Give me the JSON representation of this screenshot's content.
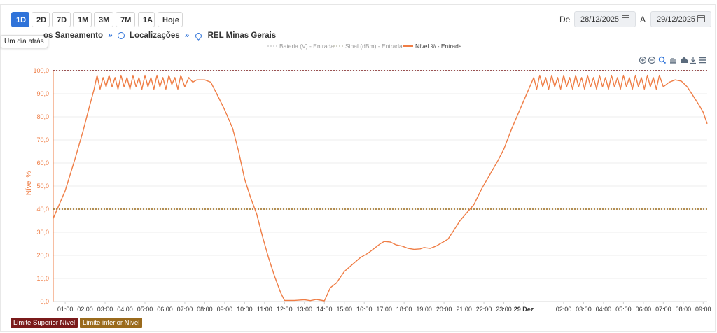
{
  "range_buttons": [
    {
      "label": "1D",
      "active": true
    },
    {
      "label": "2D",
      "active": false
    },
    {
      "label": "7D",
      "active": false
    },
    {
      "label": "1M",
      "active": false
    },
    {
      "label": "3M",
      "active": false
    },
    {
      "label": "7M",
      "active": false
    },
    {
      "label": "1A",
      "active": false
    },
    {
      "label": "Hoje",
      "active": false
    }
  ],
  "tooltip": "Um dia atrás",
  "date_range": {
    "from_label": "De",
    "from": "28/12/2025",
    "to_label": "A",
    "to": "29/12/2025"
  },
  "breadcrumb": {
    "item1": "os Saneamento",
    "item2": "Localizações",
    "item3": "REL Minas Gerais"
  },
  "legend": [
    {
      "name": "Bateria (V) - Entrada",
      "color": "#c8c8c8",
      "dashed": true
    },
    {
      "name": "Sinal (dBm) - Entrada",
      "color": "#b9b9a8",
      "dashed": true
    },
    {
      "name": "Nível % - Entrada",
      "color": "#ef7d45",
      "dashed": false
    }
  ],
  "limits": {
    "upper_label": "Limite Superior Nível",
    "upper_value": 100,
    "upper_color": "#7a1a1a",
    "lower_label": "Limite inferior Nível",
    "lower_value": 40,
    "lower_color": "#9a6a1c"
  },
  "toolbar_icons": [
    "zoom-in-icon",
    "zoom-out-icon",
    "zoom-select-icon",
    "pan-icon",
    "home-icon",
    "download-icon",
    "menu-icon"
  ],
  "chart_data": {
    "type": "line",
    "ylabel": "Nível %",
    "ylim": [
      0,
      100
    ],
    "yticks": [
      "0,0",
      "10,0",
      "20,0",
      "30,0",
      "40,0",
      "50,0",
      "60,0",
      "70,0",
      "80,0",
      "90,0",
      "100,0"
    ],
    "xlim": [
      0.4,
      33.2
    ],
    "xticks": [
      {
        "x": 1,
        "label": "01:00"
      },
      {
        "x": 2,
        "label": "02:00"
      },
      {
        "x": 3,
        "label": "03:00"
      },
      {
        "x": 4,
        "label": "04:00"
      },
      {
        "x": 5,
        "label": "05:00"
      },
      {
        "x": 6,
        "label": "06:00"
      },
      {
        "x": 7,
        "label": "07:00"
      },
      {
        "x": 8,
        "label": "08:00"
      },
      {
        "x": 9,
        "label": "09:00"
      },
      {
        "x": 10,
        "label": "10:00"
      },
      {
        "x": 11,
        "label": "11:00"
      },
      {
        "x": 12,
        "label": "12:00"
      },
      {
        "x": 13,
        "label": "13:00"
      },
      {
        "x": 14,
        "label": "14:00"
      },
      {
        "x": 15,
        "label": "15:00"
      },
      {
        "x": 16,
        "label": "16:00"
      },
      {
        "x": 17,
        "label": "17:00"
      },
      {
        "x": 18,
        "label": "18:00"
      },
      {
        "x": 19,
        "label": "19:00"
      },
      {
        "x": 20,
        "label": "20:00"
      },
      {
        "x": 21,
        "label": "21:00"
      },
      {
        "x": 22,
        "label": "22:00"
      },
      {
        "x": 23,
        "label": "23:00"
      },
      {
        "x": 24,
        "label": "29 Dez",
        "bold": true
      },
      {
        "x": 26,
        "label": "02:00"
      },
      {
        "x": 27,
        "label": "03:00"
      },
      {
        "x": 28,
        "label": "04:00"
      },
      {
        "x": 29,
        "label": "05:00"
      },
      {
        "x": 30,
        "label": "06:00"
      },
      {
        "x": 31,
        "label": "07:00"
      },
      {
        "x": 32,
        "label": "08:00"
      },
      {
        "x": 33,
        "label": "09:00"
      }
    ],
    "series": [
      {
        "name": "Nível % - Entrada",
        "color": "#ef7d45",
        "points": [
          [
            0.4,
            36
          ],
          [
            1.0,
            48
          ],
          [
            1.5,
            62
          ],
          [
            1.9,
            74
          ],
          [
            2.2,
            84
          ],
          [
            2.45,
            92
          ],
          [
            2.6,
            98
          ],
          [
            2.75,
            92
          ],
          [
            2.9,
            97
          ],
          [
            3.05,
            93
          ],
          [
            3.2,
            98
          ],
          [
            3.35,
            93
          ],
          [
            3.5,
            97
          ],
          [
            3.65,
            92
          ],
          [
            3.8,
            98
          ],
          [
            3.95,
            93
          ],
          [
            4.1,
            97
          ],
          [
            4.25,
            92
          ],
          [
            4.4,
            98
          ],
          [
            4.55,
            93
          ],
          [
            4.7,
            97
          ],
          [
            4.85,
            92
          ],
          [
            5.0,
            98
          ],
          [
            5.15,
            93
          ],
          [
            5.3,
            97
          ],
          [
            5.45,
            92
          ],
          [
            5.6,
            98
          ],
          [
            5.75,
            93
          ],
          [
            5.9,
            97
          ],
          [
            6.05,
            92
          ],
          [
            6.2,
            98
          ],
          [
            6.35,
            94
          ],
          [
            6.5,
            97
          ],
          [
            6.65,
            92
          ],
          [
            6.8,
            98
          ],
          [
            7.0,
            93
          ],
          [
            7.2,
            97
          ],
          [
            7.4,
            95
          ],
          [
            7.6,
            96
          ],
          [
            8.0,
            96
          ],
          [
            8.3,
            95
          ],
          [
            8.6,
            90
          ],
          [
            9.0,
            83
          ],
          [
            9.4,
            75
          ],
          [
            9.7,
            65
          ],
          [
            10.0,
            53
          ],
          [
            10.3,
            45
          ],
          [
            10.6,
            38
          ],
          [
            10.9,
            28
          ],
          [
            11.2,
            19
          ],
          [
            11.5,
            11
          ],
          [
            11.8,
            4
          ],
          [
            12.0,
            0.5
          ],
          [
            12.5,
            0.5
          ],
          [
            13.0,
            0.8
          ],
          [
            13.3,
            0.4
          ],
          [
            13.6,
            0.9
          ],
          [
            14.0,
            0.3
          ],
          [
            14.3,
            6
          ],
          [
            14.6,
            8
          ],
          [
            15.0,
            13
          ],
          [
            15.4,
            16
          ],
          [
            15.8,
            19
          ],
          [
            16.2,
            21
          ],
          [
            16.5,
            23
          ],
          [
            16.8,
            25
          ],
          [
            17.0,
            26
          ],
          [
            17.3,
            25.8
          ],
          [
            17.6,
            24.5
          ],
          [
            17.9,
            24
          ],
          [
            18.2,
            23
          ],
          [
            18.5,
            22.6
          ],
          [
            18.8,
            22.8
          ],
          [
            19.0,
            23.4
          ],
          [
            19.3,
            23
          ],
          [
            19.6,
            24
          ],
          [
            19.9,
            25.5
          ],
          [
            20.2,
            27
          ],
          [
            20.5,
            31
          ],
          [
            20.8,
            35
          ],
          [
            21.1,
            38
          ],
          [
            21.5,
            42
          ],
          [
            21.9,
            49
          ],
          [
            22.3,
            55
          ],
          [
            22.7,
            61
          ],
          [
            23.0,
            66
          ],
          [
            23.4,
            75
          ],
          [
            23.8,
            83
          ],
          [
            24.2,
            91
          ],
          [
            24.5,
            97
          ],
          [
            24.65,
            92
          ],
          [
            24.8,
            98
          ],
          [
            24.95,
            93
          ],
          [
            25.1,
            97
          ],
          [
            25.25,
            92
          ],
          [
            25.4,
            98
          ],
          [
            25.55,
            93
          ],
          [
            25.7,
            97
          ],
          [
            25.85,
            92
          ],
          [
            26.0,
            98
          ],
          [
            26.15,
            93
          ],
          [
            26.3,
            97
          ],
          [
            26.45,
            92
          ],
          [
            26.6,
            98
          ],
          [
            26.75,
            93
          ],
          [
            26.9,
            97
          ],
          [
            27.05,
            92
          ],
          [
            27.2,
            98
          ],
          [
            27.35,
            93
          ],
          [
            27.5,
            97
          ],
          [
            27.65,
            92
          ],
          [
            27.8,
            98
          ],
          [
            27.95,
            93
          ],
          [
            28.1,
            97
          ],
          [
            28.25,
            92
          ],
          [
            28.4,
            98
          ],
          [
            28.55,
            93
          ],
          [
            28.7,
            97
          ],
          [
            28.85,
            92
          ],
          [
            29.0,
            98
          ],
          [
            29.15,
            93
          ],
          [
            29.3,
            97
          ],
          [
            29.45,
            92
          ],
          [
            29.6,
            98
          ],
          [
            29.75,
            93
          ],
          [
            29.9,
            97
          ],
          [
            30.05,
            92
          ],
          [
            30.2,
            98
          ],
          [
            30.35,
            93
          ],
          [
            30.5,
            97
          ],
          [
            30.65,
            92
          ],
          [
            30.8,
            98
          ],
          [
            31.0,
            93
          ],
          [
            31.3,
            95
          ],
          [
            31.6,
            96
          ],
          [
            31.9,
            95.5
          ],
          [
            32.2,
            93
          ],
          [
            32.5,
            89
          ],
          [
            32.8,
            85
          ],
          [
            33.0,
            82
          ],
          [
            33.2,
            77
          ]
        ]
      }
    ]
  }
}
